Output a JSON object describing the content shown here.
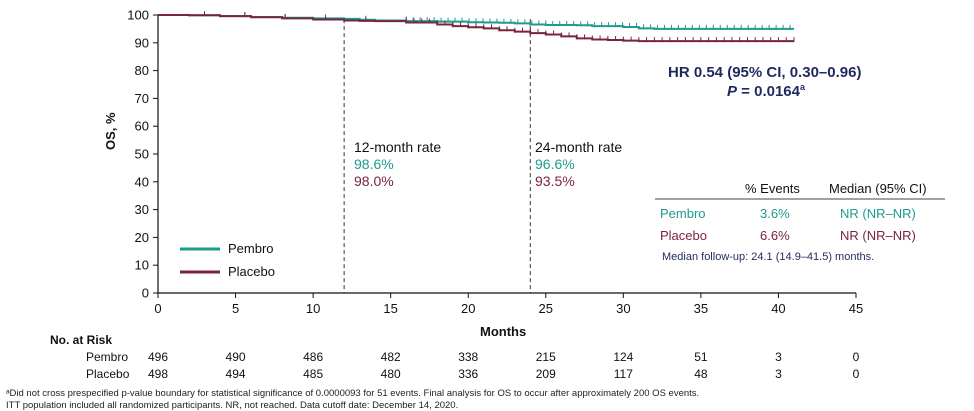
{
  "chart_data": {
    "type": "line",
    "xlabel": "Months",
    "ylabel": "OS, %",
    "xlim": [
      0,
      45
    ],
    "ylim": [
      0,
      100
    ],
    "xticks": [
      0,
      5,
      10,
      15,
      20,
      25,
      30,
      35,
      40,
      45
    ],
    "yticks": [
      0,
      10,
      20,
      30,
      40,
      50,
      60,
      70,
      80,
      90,
      100
    ],
    "series": [
      {
        "name": "Pembro",
        "color": "#1f9a8e",
        "x": [
          0,
          2,
          4,
          6,
          8,
          10,
          12,
          13,
          14,
          16,
          18,
          20,
          21,
          22,
          23,
          24,
          25,
          26,
          27,
          28,
          29,
          30,
          31,
          32,
          34,
          36,
          38,
          41
        ],
        "y": [
          100,
          99.9,
          99.6,
          99.3,
          99.0,
          98.8,
          98.6,
          98.3,
          98.0,
          97.8,
          97.6,
          97.4,
          97.3,
          97.2,
          97.0,
          96.6,
          96.4,
          96.4,
          96.3,
          96.0,
          96.0,
          95.7,
          95.2,
          95.0,
          95.0,
          95.0,
          95.0,
          95.0
        ]
      },
      {
        "name": "Placebo",
        "color": "#7a2340",
        "x": [
          0,
          2,
          4,
          6,
          8,
          10,
          12,
          13,
          14,
          16,
          18,
          19,
          20,
          21,
          22,
          23,
          24,
          25,
          26,
          27,
          28,
          29,
          30,
          31,
          34,
          37,
          41
        ],
        "y": [
          100,
          99.9,
          99.6,
          99.2,
          98.8,
          98.4,
          98.0,
          97.9,
          97.8,
          97.3,
          96.6,
          96.0,
          95.6,
          95.2,
          94.5,
          94.0,
          93.5,
          93.0,
          92.3,
          91.6,
          91.2,
          91.0,
          90.8,
          90.6,
          90.6,
          90.6,
          90.6
        ]
      }
    ],
    "reference_lines": [
      12,
      24
    ],
    "hr_text": "HR 0.54 (95% CI, 0.30–0.96)",
    "p_label": "P",
    "p_value": " = 0.0164",
    "p_superscript": "a",
    "rates": [
      {
        "title": "12-month rate",
        "pembro": "98.6%",
        "placebo": "98.0%"
      },
      {
        "title": "24-month rate",
        "pembro": "96.6%",
        "placebo": "93.5%"
      }
    ],
    "legend": [
      "Pembro",
      "Placebo"
    ],
    "summary_table": {
      "col_events": "% Events",
      "col_median": "Median (95% CI)",
      "rows": [
        {
          "name": "Pembro",
          "events": "3.6%",
          "median": "NR (NR–NR)"
        },
        {
          "name": "Placebo",
          "events": "6.6%",
          "median": "NR (NR–NR)"
        }
      ],
      "followup": "Median follow-up: 24.1 (14.9–41.5) months."
    },
    "risk_table": {
      "title": "No. at Risk",
      "rows": [
        {
          "name": "Pembro",
          "values": [
            "496",
            "490",
            "486",
            "482",
            "338",
            "215",
            "124",
            "51",
            "3",
            "0"
          ]
        },
        {
          "name": "Placebo",
          "values": [
            "498",
            "494",
            "485",
            "480",
            "336",
            "209",
            "117",
            "48",
            "3",
            "0"
          ]
        }
      ]
    }
  },
  "footnotes": {
    "line1": "ᵃDid not cross prespecified p-value boundary for statistical significance of 0.0000093 for 51 events. Final analysis for OS to occur after approximately 200 OS events.",
    "line2": "ITT population included all randomized participants. NR, not reached. Data cutoff date: December 14, 2020."
  }
}
